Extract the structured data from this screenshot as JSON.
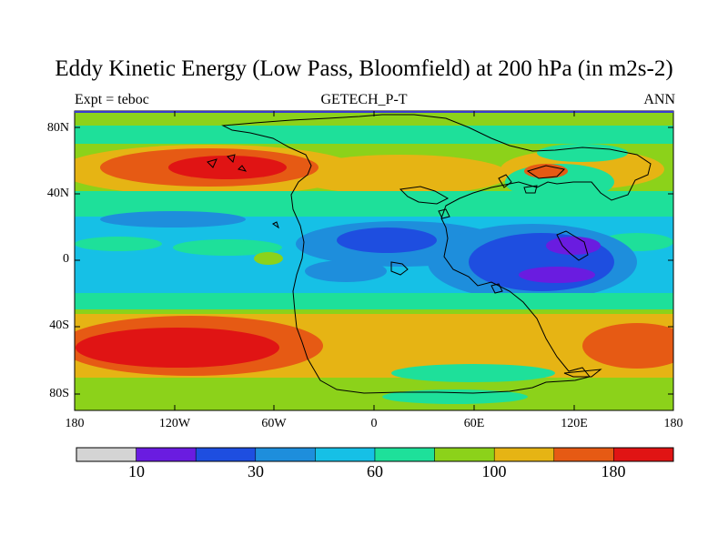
{
  "title": "Eddy Kinetic Energy (Low Pass, Bloomfield) at 200 hPa (in m2s-2)",
  "subtitle_left": "Expt = teboc",
  "subtitle_center": "GETECH_P-T",
  "subtitle_right": "ANN",
  "lat_ticks": [
    "80N",
    "40N",
    "0",
    "40S",
    "80S"
  ],
  "lon_ticks": [
    "180",
    "120W",
    "60W",
    "0",
    "60E",
    "120E",
    "180"
  ],
  "colorbar": {
    "colors": [
      "#d4d4d4",
      "#6a1ce0",
      "#1e4ee0",
      "#1e8edc",
      "#16c0e6",
      "#1ee09a",
      "#8cd21a",
      "#e6b414",
      "#e65a14",
      "#e01414"
    ],
    "labels": [
      "10",
      "30",
      "60",
      "100",
      "180"
    ]
  },
  "map_style": {
    "background": "#16c0e6",
    "coastline": "#000000",
    "frame": "#000000"
  }
}
